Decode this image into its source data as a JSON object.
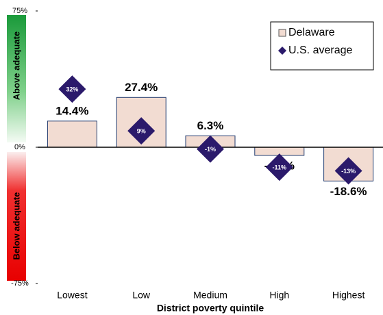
{
  "chart_data": {
    "type": "bar",
    "xlabel": "District poverty quintile",
    "annotations": [
      "Above adequate",
      "Below adequate"
    ],
    "categories": [
      "Lowest",
      "Low",
      "Medium",
      "High",
      "Highest"
    ],
    "series": [
      {
        "name": "Delaware",
        "type": "bar",
        "color": "#f2dcd2",
        "edgecolor": "#1f3a6e",
        "values": [
          14.4,
          27.4,
          6.3,
          -4.5,
          -18.6
        ],
        "value_labels": [
          "14.4%",
          "27.4%",
          "6.3%",
          "-4.5%",
          "-18.6%"
        ]
      },
      {
        "name": "U.S. average",
        "type": "scatter",
        "marker": "diamond",
        "color": "#2b1a6b",
        "values": [
          32,
          9,
          -1,
          -11,
          -13
        ],
        "value_labels": [
          "32%",
          "9%",
          "-1%",
          "-11%",
          "-13%"
        ]
      }
    ],
    "ylim": [
      -75,
      75
    ],
    "yticks": [
      {
        "value": 75,
        "label": "75%"
      },
      {
        "value": 0,
        "label": "0%"
      },
      {
        "value": -75,
        "label": "-75%"
      }
    ],
    "grid": false,
    "legend": "upper right"
  }
}
